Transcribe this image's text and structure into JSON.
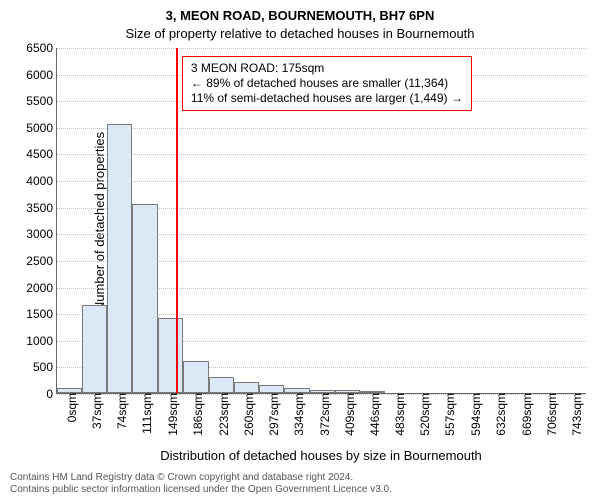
{
  "chart": {
    "type": "histogram",
    "title": "3, MEON ROAD, BOURNEMOUTH, BH7 6PN",
    "subtitle": "Size of property relative to detached houses in Bournemouth",
    "ylabel": "Number of detached properties",
    "xlabel": "Distribution of detached houses by size in Bournemouth",
    "title_fontsize": 13,
    "subtitle_fontsize": 13,
    "axis_label_fontsize": 13,
    "tick_fontsize": 12,
    "x_categories": [
      "0sqm",
      "37sqm",
      "74sqm",
      "111sqm",
      "149sqm",
      "186sqm",
      "223sqm",
      "260sqm",
      "297sqm",
      "334sqm",
      "372sqm",
      "409sqm",
      "446sqm",
      "483sqm",
      "520sqm",
      "557sqm",
      "594sqm",
      "632sqm",
      "669sqm",
      "706sqm",
      "743sqm"
    ],
    "bin_edges_sqm": [
      0,
      37,
      74,
      111,
      149,
      186,
      223,
      260,
      297,
      334,
      372,
      409,
      446,
      483,
      520,
      557,
      594,
      632,
      669,
      706,
      743,
      780
    ],
    "values": [
      100,
      1650,
      5050,
      3550,
      1400,
      600,
      300,
      200,
      150,
      100,
      60,
      60,
      40,
      0,
      0,
      0,
      0,
      0,
      0,
      0,
      0
    ],
    "ylim": [
      0,
      6500
    ],
    "ytick_step": 500,
    "bar_fill": "#dbe8f6",
    "bar_stroke": "#7a7a7a",
    "bar_width_ratio": 1.0,
    "background_color": "#ffffff",
    "grid_color": "#bfbfbf",
    "axis_color": "#666666",
    "marker_line": {
      "x_sqm": 175,
      "color": "#ff0000"
    },
    "annotation": {
      "lines": [
        "3 MEON ROAD: 175sqm",
        "← 89% of detached houses are smaller (11,364)",
        "11% of semi-detached houses are larger (1,449) →"
      ],
      "border_color": "#ff0000",
      "fontsize": 12
    },
    "footer_lines": [
      "Contains HM Land Registry data © Crown copyright and database right 2024.",
      "Contains public sector information licensed under the Open Government Licence v3.0."
    ],
    "footer_fontsize": 10,
    "footer_color": "#555555"
  }
}
